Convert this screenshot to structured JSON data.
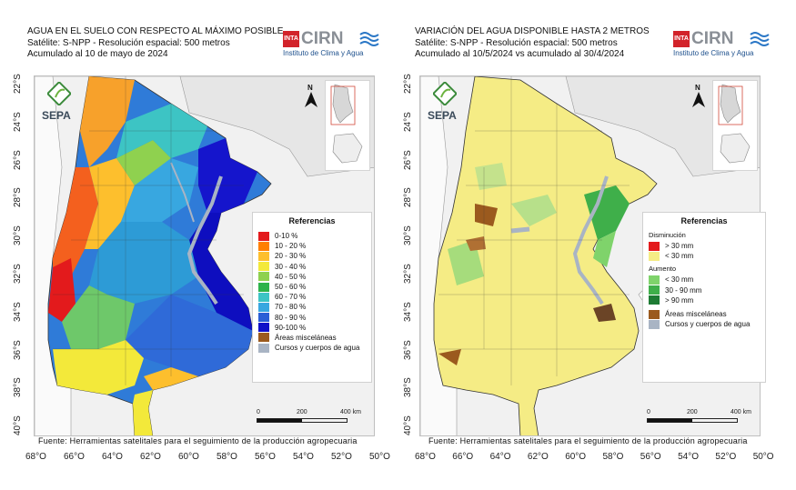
{
  "left_panel": {
    "title_lines": [
      "AGUA EN EL SUELO CON RESPECTO AL MÁXIMO POSIBLE",
      "Satélite: S-NPP - Resolución espacial: 500 metros",
      "Acumulado al 10 de mayo de 2024"
    ],
    "legend": {
      "title": "Referencias",
      "items": [
        {
          "label": "0-10 %",
          "color": "#e31a1c"
        },
        {
          "label": "10 - 20 %",
          "color": "#ff7f00"
        },
        {
          "label": "20 - 30 %",
          "color": "#fdbf2d"
        },
        {
          "label": "30 - 40 %",
          "color": "#f3e93a"
        },
        {
          "label": "40 - 50 %",
          "color": "#8fd14f"
        },
        {
          "label": "50 - 60 %",
          "color": "#2db34a"
        },
        {
          "label": "60 - 70 %",
          "color": "#3dc4c4"
        },
        {
          "label": "70 - 80 %",
          "color": "#38a7e0"
        },
        {
          "label": "80 - 90 %",
          "color": "#2a5fd6"
        },
        {
          "label": "90-100 %",
          "color": "#1010c8"
        },
        {
          "label": "Áreas misceláneas",
          "color": "#9b5a1e"
        },
        {
          "label": "Cursos y cuerpos de agua",
          "color": "#a9b4c4"
        }
      ]
    }
  },
  "right_panel": {
    "title_lines": [
      "VARIACIÓN DEL AGUA DISPONIBLE HASTA 2 METROS",
      "Satélite: S-NPP - Resolución espacial: 500 metros",
      "Acumulado al 10/5/2024 vs acumulado al 30/4/2024"
    ],
    "legend": {
      "title": "Referencias",
      "group_decrease": "Disminución",
      "decrease_items": [
        {
          "label": "> 30 mm",
          "color": "#e31a1c"
        },
        {
          "label": "< 30 mm",
          "color": "#f5ec85"
        }
      ],
      "group_increase": "Aumento",
      "increase_items": [
        {
          "label": "< 30 mm",
          "color": "#7fd36b"
        },
        {
          "label": "30 - 90 mm",
          "color": "#3faf4a"
        },
        {
          "label": "> 90 mm",
          "color": "#1e7b34"
        }
      ],
      "other_items": [
        {
          "label": "Áreas misceláneas",
          "color": "#9b5a1e"
        },
        {
          "label": "Cursos y cuerpos de agua",
          "color": "#a9b4c4"
        }
      ]
    }
  },
  "logo": {
    "inta": "INTA",
    "cirn": "CIRN",
    "subtitle": "Instituto de Clima y Agua"
  },
  "sepa_logo": "SEPA",
  "north_label": "N",
  "scale": {
    "labels": [
      "0",
      "200",
      "400 km"
    ]
  },
  "latitude_labels": [
    "22°S",
    "24°S",
    "26°S",
    "28°S",
    "30°S",
    "32°S",
    "34°S",
    "36°S",
    "38°S",
    "40°S"
  ],
  "longitude_labels": [
    "68°O",
    "66°O",
    "64°O",
    "62°O",
    "60°O",
    "58°O",
    "56°O",
    "54°O",
    "52°O",
    "50°O"
  ],
  "source": "Fuente: Herramientas satelitales para el seguimiento de la producción agropecuaria"
}
